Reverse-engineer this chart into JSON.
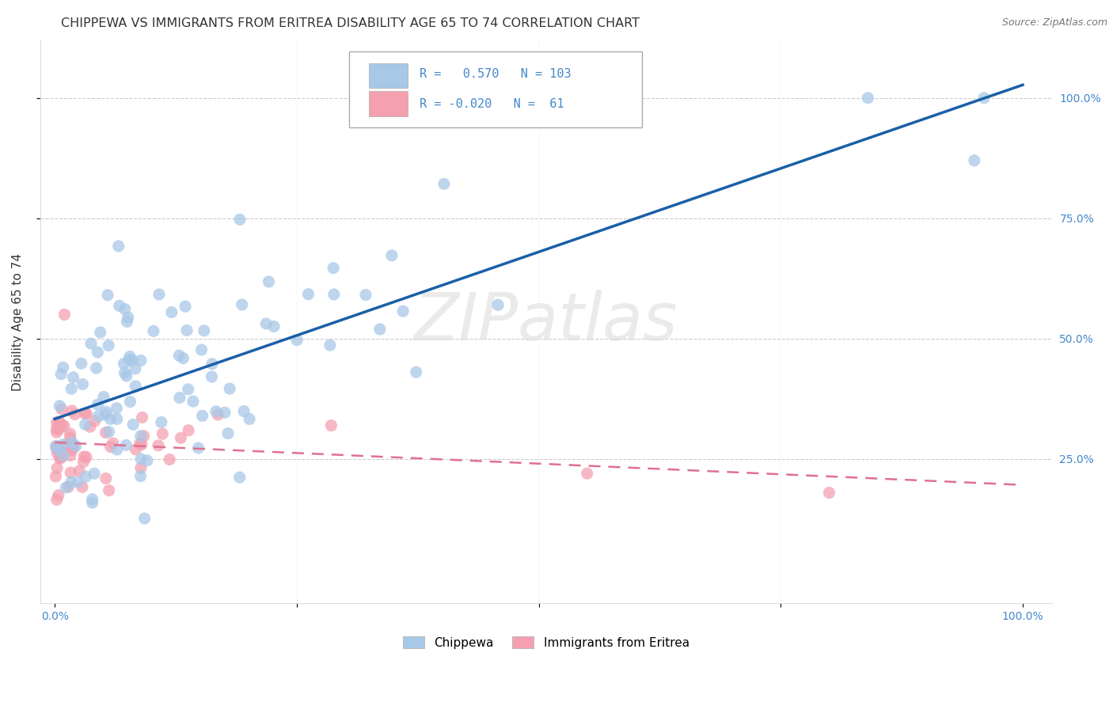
{
  "title": "CHIPPEWA VS IMMIGRANTS FROM ERITREA DISABILITY AGE 65 TO 74 CORRELATION CHART",
  "source": "Source: ZipAtlas.com",
  "ylabel": "Disability Age 65 to 74",
  "chippewa_R": 0.57,
  "chippewa_N": 103,
  "eritrea_R": -0.02,
  "eritrea_N": 61,
  "chippewa_color": "#a8c8e8",
  "eritrea_color": "#f4a0b0",
  "chippewa_line_color": "#1a5fa8",
  "eritrea_line_color": "#e07090",
  "background_color": "#ffffff",
  "grid_color": "#cccccc",
  "tick_color": "#4488cc",
  "title_color": "#333333",
  "source_color": "#777777",
  "ylabel_color": "#333333",
  "title_fontsize": 11.5,
  "axis_label_fontsize": 11,
  "tick_fontsize": 10,
  "legend_fontsize": 12,
  "watermark_color": "#dddddd",
  "watermark_alpha": 0.6
}
